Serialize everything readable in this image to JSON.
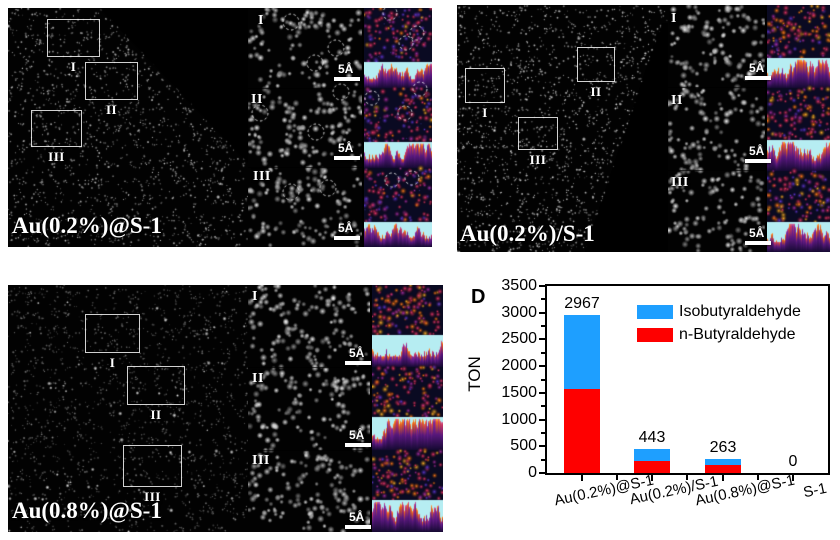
{
  "panels": [
    {
      "label": "Au(0.2%)@S-1",
      "regions": [
        {
          "numeral": "I"
        },
        {
          "numeral": "II"
        },
        {
          "numeral": "III"
        }
      ],
      "zooms": [
        {
          "numeral": "I",
          "scale_bar": "5Å"
        },
        {
          "numeral": "II",
          "scale_bar": "5Å"
        },
        {
          "numeral": "III",
          "scale_bar": "5Å"
        }
      ],
      "dashed_circle_annotations": true
    },
    {
      "label": "Au(0.2%)/S-1",
      "regions": [
        {
          "numeral": "I"
        },
        {
          "numeral": "II"
        },
        {
          "numeral": "III"
        }
      ],
      "zooms": [
        {
          "numeral": "I",
          "scale_bar": "5Å"
        },
        {
          "numeral": "II",
          "scale_bar": "5Å"
        },
        {
          "numeral": "III",
          "scale_bar": "5Å"
        }
      ],
      "dashed_circle_annotations": false
    },
    {
      "label": "Au(0.8%)@S-1",
      "regions": [
        {
          "numeral": "I"
        },
        {
          "numeral": "II"
        },
        {
          "numeral": "III"
        }
      ],
      "zooms": [
        {
          "numeral": "I",
          "scale_bar": "5Å"
        },
        {
          "numeral": "II",
          "scale_bar": "5Å"
        },
        {
          "numeral": "III",
          "scale_bar": "5Å"
        }
      ],
      "dashed_circle_annotations": false
    }
  ],
  "chart_data": {
    "type": "bar",
    "stacked": true,
    "panel_label": "D",
    "categories": [
      "Au(0.2%)@S-1",
      "Au(0.2%)/S-1",
      "Au(0.8%)@S-1",
      "S-1"
    ],
    "series": [
      {
        "name": "Isobutyraldehyde",
        "color": "#1e9fff",
        "values": [
          1387,
          213,
          108,
          0
        ]
      },
      {
        "name": "n-Butyraldehyde",
        "color": "#fe0000",
        "values": [
          1580,
          230,
          155,
          0
        ]
      }
    ],
    "totals": [
      2967,
      443,
      263,
      0
    ],
    "total_labels": [
      "2967",
      "443",
      "263",
      "0"
    ],
    "ylabel": "TON",
    "ylim": [
      0,
      3500
    ],
    "yticks": [
      0,
      500,
      1000,
      1500,
      2000,
      2500,
      3000,
      3500
    ],
    "ytick_labels": [
      "0",
      "500",
      "1000",
      "1500",
      "2000",
      "2500",
      "3000",
      "3500"
    ],
    "grid": false,
    "legend_position": "upper-right-inside"
  }
}
